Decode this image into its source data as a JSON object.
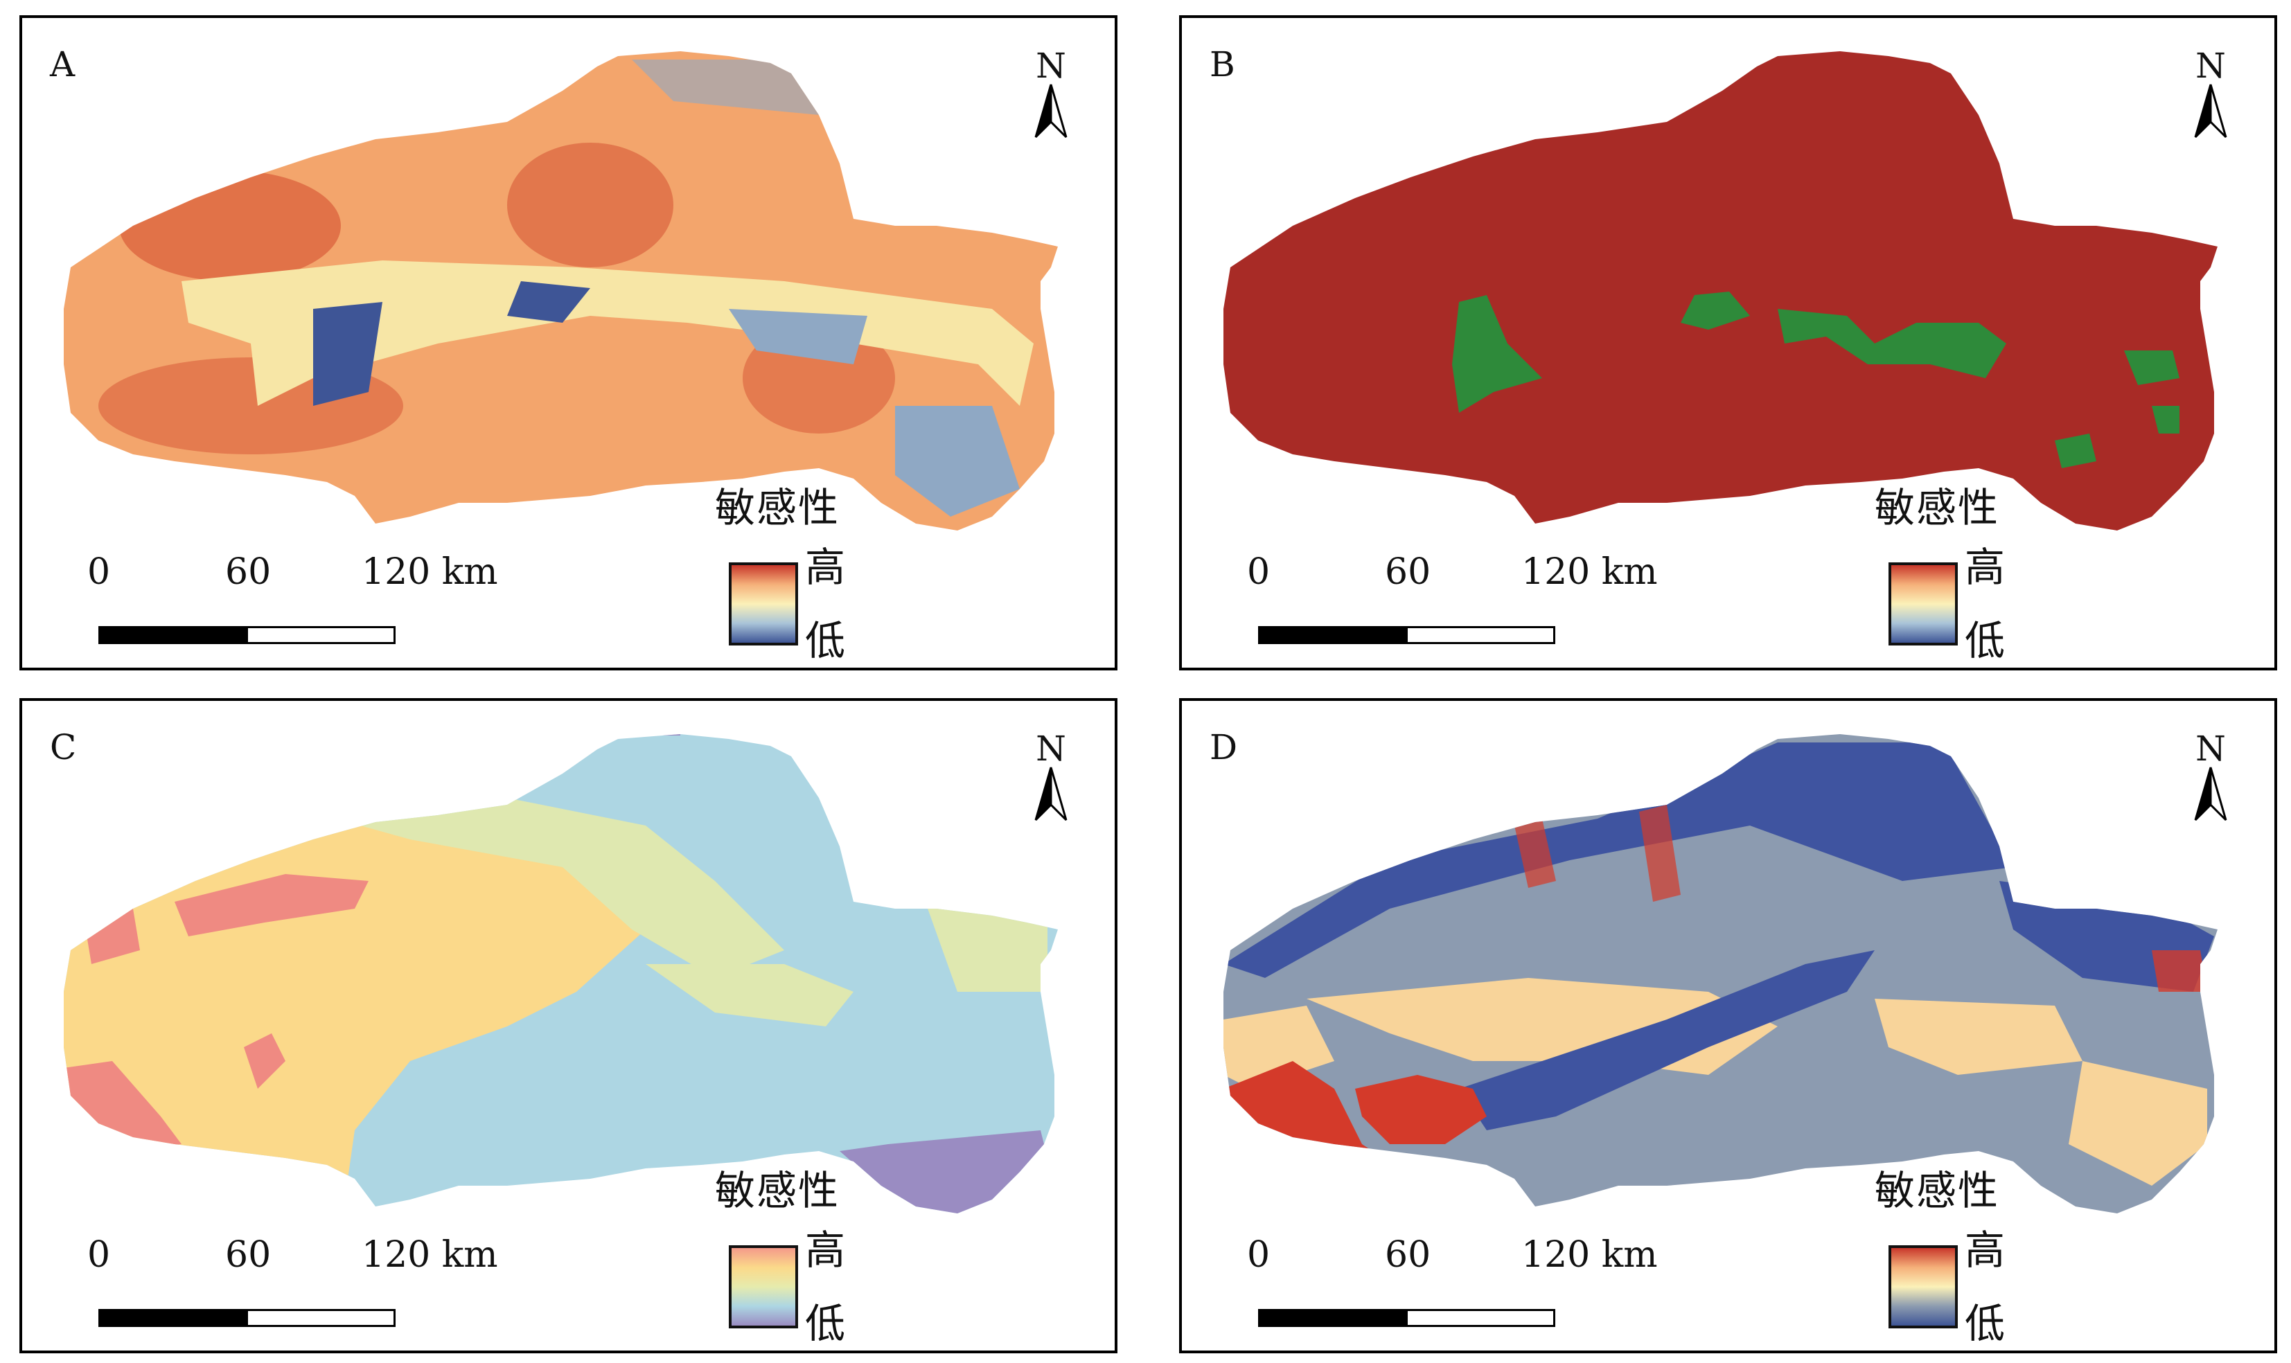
{
  "panels": [
    {
      "label": "A",
      "north": "N",
      "scale": {
        "ticks": [
          "0",
          "60",
          "120 km"
        ]
      },
      "legend": {
        "title": "敏感性",
        "high": "高",
        "low": "低",
        "colors": [
          "#c8372b",
          "#f5b07a",
          "#fbf1b8",
          "#a9c4d8",
          "#3e5596"
        ]
      }
    },
    {
      "label": "B",
      "north": "N",
      "scale": {
        "ticks": [
          "0",
          "60",
          "120 km"
        ]
      },
      "legend": {
        "title": "敏感性",
        "high": "高",
        "low": "低",
        "colors": [
          "#c8372b",
          "#f5b07a",
          "#fbf1b8",
          "#a9c4d8",
          "#3e5596"
        ]
      }
    },
    {
      "label": "C",
      "north": "N",
      "scale": {
        "ticks": [
          "0",
          "60",
          "120 km"
        ]
      },
      "legend": {
        "title": "敏感性",
        "high": "高",
        "low": "低",
        "colors": [
          "#f49a8a",
          "#fbd98a",
          "#e6ebad",
          "#add6e3",
          "#9a8cc2"
        ]
      }
    },
    {
      "label": "D",
      "north": "N",
      "scale": {
        "ticks": [
          "0",
          "60",
          "120 km"
        ]
      },
      "legend": {
        "title": "敏感性",
        "high": "高",
        "low": "低",
        "colors": [
          "#c8372b",
          "#f5b07a",
          "#fbf1b8",
          "#8c9bb0",
          "#3e5596"
        ]
      }
    }
  ],
  "map_colors": {
    "A": {
      "base": "#f3a56c",
      "hot": "#d2492c",
      "mid": "#f7e6a6",
      "cool": "#8fa8c4",
      "low": "#3e5596"
    },
    "B": {
      "base": "#a82b26",
      "patch": "#2e8a3a"
    },
    "C": {
      "yellow": "#fbd98a",
      "pink": "#ef8a82",
      "lime": "#dfe8b0",
      "blue": "#add6e3",
      "purple": "#9a8cc2"
    },
    "D": {
      "grey": "#8c9bb0",
      "navy": "#3f54a0",
      "sand": "#f8d49a",
      "red": "#d43a2a"
    }
  }
}
